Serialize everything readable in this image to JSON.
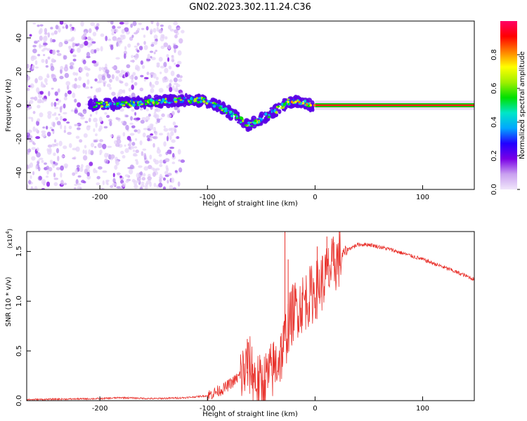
{
  "title": "GN02.2023.302.11.24.C36",
  "chart_data": [
    {
      "type": "heatmap",
      "xlabel": "Height of straight line (km)",
      "ylabel": "Frequency (Hz)",
      "xlim": [
        -268,
        148
      ],
      "ylim": [
        -50,
        50
      ],
      "xticks": [
        -200,
        -100,
        0,
        100
      ],
      "yticks": [
        -40,
        -20,
        0,
        20,
        40
      ],
      "colorbar": {
        "label": "Normalized spectral amplitude",
        "range": [
          0,
          1
        ],
        "ticks": [
          "0.0",
          "0.2",
          "0.4",
          "0.6",
          "0.8"
        ],
        "colors": [
          "#f0e6fa",
          "#c9a0f0",
          "#7a00e6",
          "#2200ff",
          "#00a6ff",
          "#00e6c8",
          "#00e000",
          "#a0f000",
          "#ffff00",
          "#ff8000",
          "#ff0000",
          "#ff0066"
        ]
      },
      "ridge": [
        {
          "x": -210,
          "y": 0
        },
        {
          "x": -180,
          "y": 1
        },
        {
          "x": -150,
          "y": 2
        },
        {
          "x": -125,
          "y": 3
        },
        {
          "x": -105,
          "y": 3
        },
        {
          "x": -90,
          "y": 0
        },
        {
          "x": -75,
          "y": -6
        },
        {
          "x": -62,
          "y": -12
        },
        {
          "x": -50,
          "y": -8
        },
        {
          "x": -38,
          "y": -4
        },
        {
          "x": -25,
          "y": 2
        },
        {
          "x": -15,
          "y": 2
        },
        {
          "x": -5,
          "y": 0
        },
        {
          "x": 0,
          "y": 0
        },
        {
          "x": 148,
          "y": 0
        }
      ]
    },
    {
      "type": "line",
      "xlabel": "Height of straight line (km)",
      "ylabel": "SNR (10 * v/v)",
      "multiplier": "(x10",
      "multiplier_exp": "4",
      "multiplier_close": ")",
      "xlim": [
        -268,
        148
      ],
      "ylim": [
        0,
        1.7
      ],
      "xticks": [
        -200,
        -100,
        0,
        100
      ],
      "yticks": [
        "0.0",
        "0.5",
        "1.0",
        "1.5"
      ],
      "color": "#e8302a",
      "series": [
        {
          "x": -268,
          "y": 0.01
        },
        {
          "x": -240,
          "y": 0.015
        },
        {
          "x": -200,
          "y": 0.02
        },
        {
          "x": -180,
          "y": 0.03
        },
        {
          "x": -150,
          "y": 0.02
        },
        {
          "x": -120,
          "y": 0.03
        },
        {
          "x": -100,
          "y": 0.05
        },
        {
          "x": -85,
          "y": 0.12
        },
        {
          "x": -75,
          "y": 0.2
        },
        {
          "x": -65,
          "y": 0.3
        },
        {
          "x": -60,
          "y": 0.35
        },
        {
          "x": -55,
          "y": 0.2
        },
        {
          "x": -50,
          "y": 0.15
        },
        {
          "x": -40,
          "y": 0.3
        },
        {
          "x": -30,
          "y": 0.5
        },
        {
          "x": -25,
          "y": 0.75
        },
        {
          "x": -20,
          "y": 0.9
        },
        {
          "x": -10,
          "y": 1.0
        },
        {
          "x": 0,
          "y": 1.1
        },
        {
          "x": 10,
          "y": 1.25
        },
        {
          "x": 20,
          "y": 1.4
        },
        {
          "x": 30,
          "y": 1.52
        },
        {
          "x": 40,
          "y": 1.57
        },
        {
          "x": 50,
          "y": 1.57
        },
        {
          "x": 70,
          "y": 1.52
        },
        {
          "x": 100,
          "y": 1.42
        },
        {
          "x": 125,
          "y": 1.32
        },
        {
          "x": 148,
          "y": 1.22
        }
      ],
      "spikes": [
        {
          "x": -63,
          "y": 0.62
        },
        {
          "x": -28,
          "y": 1.7
        },
        {
          "x": -25,
          "y": 1.42
        },
        {
          "x": 2,
          "y": 1.55
        },
        {
          "x": 11,
          "y": 1.65
        },
        {
          "x": 17,
          "y": 1.58
        }
      ]
    }
  ]
}
